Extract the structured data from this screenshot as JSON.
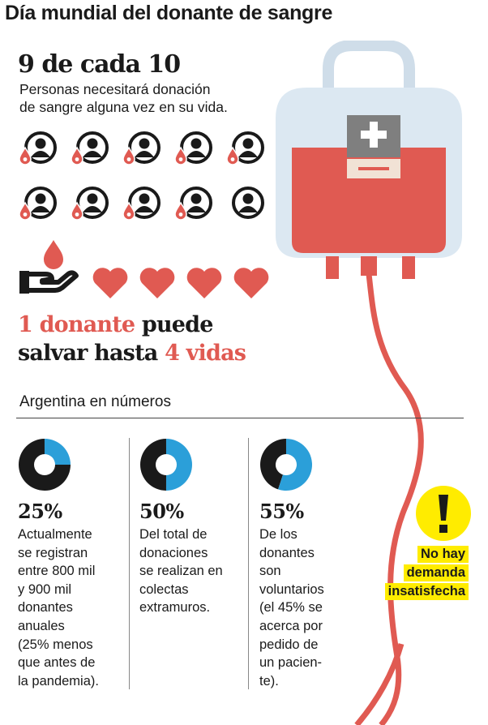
{
  "header": {
    "title": "Día mundial del donante de sangre"
  },
  "stat_people": {
    "headline": "9 de cada 10",
    "description_lines": [
      "Personas necesitará donación",
      "de sangre alguna vez en su vida."
    ],
    "people_total": 10,
    "people_needing": 9
  },
  "donor": {
    "hearts": 4,
    "line1_red": "1 donante",
    "line1_dark": " puede",
    "line2_dark": "salvar hasta ",
    "line2_red": "4 vidas"
  },
  "section": {
    "title": "Argentina en números"
  },
  "stats": [
    {
      "percent_label": "25%",
      "value": 0.25,
      "lines": [
        "Actualmente",
        "se registran",
        "entre 800 mil",
        "y 900 mil",
        "donantes",
        "anuales",
        "(25% menos",
        "que antes de",
        "la pandemia)."
      ]
    },
    {
      "percent_label": "50%",
      "value": 0.5,
      "lines": [
        "Del total de",
        "donaciones",
        "se realizan en",
        "colectas",
        "extramuros."
      ]
    },
    {
      "percent_label": "55%",
      "value": 0.55,
      "lines": [
        "De los",
        "donantes",
        "son",
        "voluntarios",
        "(el 45% se",
        "acerca por",
        "pedido de",
        "un pacien-",
        "te)."
      ]
    }
  ],
  "warning": {
    "lines": [
      "No hay",
      "demanda",
      "insatisfecha"
    ]
  },
  "colors": {
    "red": "#e05a52",
    "blue": "#2b9fd9",
    "yellow": "#ffec00",
    "dark": "#1a1a1a",
    "bag": "#dce8f2"
  },
  "icons": [
    "person-icon",
    "blood-drop-icon",
    "hand-drop-icon",
    "heart-icon",
    "blood-bag-icon",
    "warning-icon"
  ]
}
